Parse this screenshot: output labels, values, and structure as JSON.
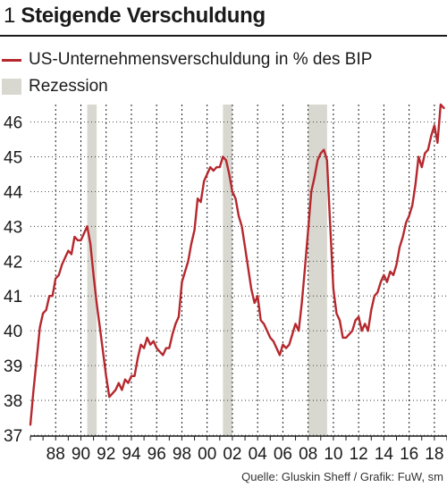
{
  "header": {
    "figure_number": "1",
    "title": "Steigende Verschuldung"
  },
  "legend": {
    "series_label": "US-Unternehmensverschuldung in % des BIP",
    "recession_label": "Rezession"
  },
  "source": "Quelle: Gluskin Sheff / Grafik: FuW, sm",
  "colors": {
    "series": "#b5282e",
    "recession": "#d9d8d0",
    "grid": "#1a1a1a",
    "text": "#1a1a1a"
  },
  "chart_data": {
    "type": "line",
    "title": "Steigende Verschuldung",
    "xlabel": "",
    "ylabel": "",
    "xlim": [
      1986.0,
      2019.0
    ],
    "ylim": [
      37,
      46.5
    ],
    "y_ticks": [
      37,
      38,
      39,
      40,
      41,
      42,
      43,
      44,
      45,
      46
    ],
    "x_ticks": [
      1988,
      1990,
      1992,
      1994,
      1996,
      1998,
      2000,
      2002,
      2004,
      2006,
      2008,
      2010,
      2012,
      2014,
      2016,
      2018
    ],
    "x_tick_labels": [
      "88",
      "90",
      "92",
      "94",
      "96",
      "98",
      "00",
      "02",
      "04",
      "06",
      "08",
      "10",
      "12",
      "14",
      "16",
      "18"
    ],
    "recessions": [
      [
        1990.5,
        1991.25
      ],
      [
        2001.25,
        2002.0
      ],
      [
        2008.0,
        2009.5
      ]
    ],
    "grid": "vertical-dotted",
    "series": [
      {
        "name": "US-Unternehmensverschuldung in % des BIP",
        "x": [
          1986.0,
          1986.25,
          1986.5,
          1986.75,
          1987.0,
          1987.25,
          1987.5,
          1987.75,
          1988.0,
          1988.25,
          1988.5,
          1988.75,
          1989.0,
          1989.25,
          1989.5,
          1989.75,
          1990.0,
          1990.25,
          1990.5,
          1990.75,
          1991.0,
          1991.25,
          1991.5,
          1991.75,
          1992.0,
          1992.25,
          1992.5,
          1992.75,
          1993.0,
          1993.25,
          1993.5,
          1993.75,
          1994.0,
          1994.25,
          1994.5,
          1994.75,
          1995.0,
          1995.25,
          1995.5,
          1995.75,
          1996.0,
          1996.25,
          1996.5,
          1996.75,
          1997.0,
          1997.25,
          1997.5,
          1997.75,
          1998.0,
          1998.25,
          1998.5,
          1998.75,
          1999.0,
          1999.25,
          1999.5,
          1999.75,
          2000.0,
          2000.25,
          2000.5,
          2000.75,
          2001.0,
          2001.25,
          2001.5,
          2001.75,
          2002.0,
          2002.25,
          2002.5,
          2002.75,
          2003.0,
          2003.25,
          2003.5,
          2003.75,
          2004.0,
          2004.25,
          2004.5,
          2004.75,
          2005.0,
          2005.25,
          2005.5,
          2005.75,
          2006.0,
          2006.25,
          2006.5,
          2006.75,
          2007.0,
          2007.25,
          2007.5,
          2007.75,
          2008.0,
          2008.25,
          2008.5,
          2008.75,
          2009.0,
          2009.25,
          2009.5,
          2009.75,
          2010.0,
          2010.25,
          2010.5,
          2010.75,
          2011.0,
          2011.25,
          2011.5,
          2011.75,
          2012.0,
          2012.25,
          2012.5,
          2012.75,
          2013.0,
          2013.25,
          2013.5,
          2013.75,
          2014.0,
          2014.25,
          2014.5,
          2014.75,
          2015.0,
          2015.25,
          2015.5,
          2015.75,
          2016.0,
          2016.25,
          2016.5,
          2016.75,
          2017.0,
          2017.25,
          2017.5,
          2017.75,
          2018.0,
          2018.25,
          2018.5,
          2018.75
        ],
        "values": [
          37.3,
          38.3,
          39.2,
          40.1,
          40.5,
          40.6,
          41.0,
          41.0,
          41.5,
          41.6,
          41.9,
          42.1,
          42.3,
          42.2,
          42.7,
          42.6,
          42.6,
          42.8,
          43.0,
          42.5,
          41.6,
          40.8,
          40.1,
          39.4,
          38.7,
          38.1,
          38.2,
          38.3,
          38.5,
          38.3,
          38.6,
          38.5,
          38.7,
          38.7,
          39.2,
          39.6,
          39.5,
          39.8,
          39.6,
          39.7,
          39.5,
          39.4,
          39.3,
          39.5,
          39.5,
          39.9,
          40.2,
          40.4,
          41.4,
          41.7,
          42.0,
          42.5,
          42.9,
          43.8,
          43.7,
          44.3,
          44.5,
          44.7,
          44.6,
          44.7,
          44.7,
          45.0,
          44.9,
          44.5,
          44.0,
          43.8,
          43.3,
          43.0,
          42.4,
          41.8,
          41.2,
          40.8,
          41.0,
          40.3,
          40.2,
          40.0,
          39.8,
          39.7,
          39.5,
          39.3,
          39.6,
          39.5,
          39.6,
          39.9,
          40.2,
          40.0,
          40.8,
          41.8,
          42.9,
          44.0,
          44.4,
          44.9,
          45.1,
          45.2,
          44.9,
          43.0,
          41.2,
          40.5,
          40.3,
          39.8,
          39.8,
          39.9,
          40.0,
          40.3,
          40.4,
          40.0,
          40.2,
          40.0,
          40.6,
          41.0,
          41.1,
          41.4,
          41.6,
          41.4,
          41.7,
          41.6,
          41.9,
          42.4,
          42.7,
          43.1,
          43.3,
          43.6,
          44.2,
          45.0,
          44.7,
          45.1,
          45.2,
          45.6,
          45.9,
          45.4,
          46.5,
          46.4
        ]
      }
    ]
  }
}
